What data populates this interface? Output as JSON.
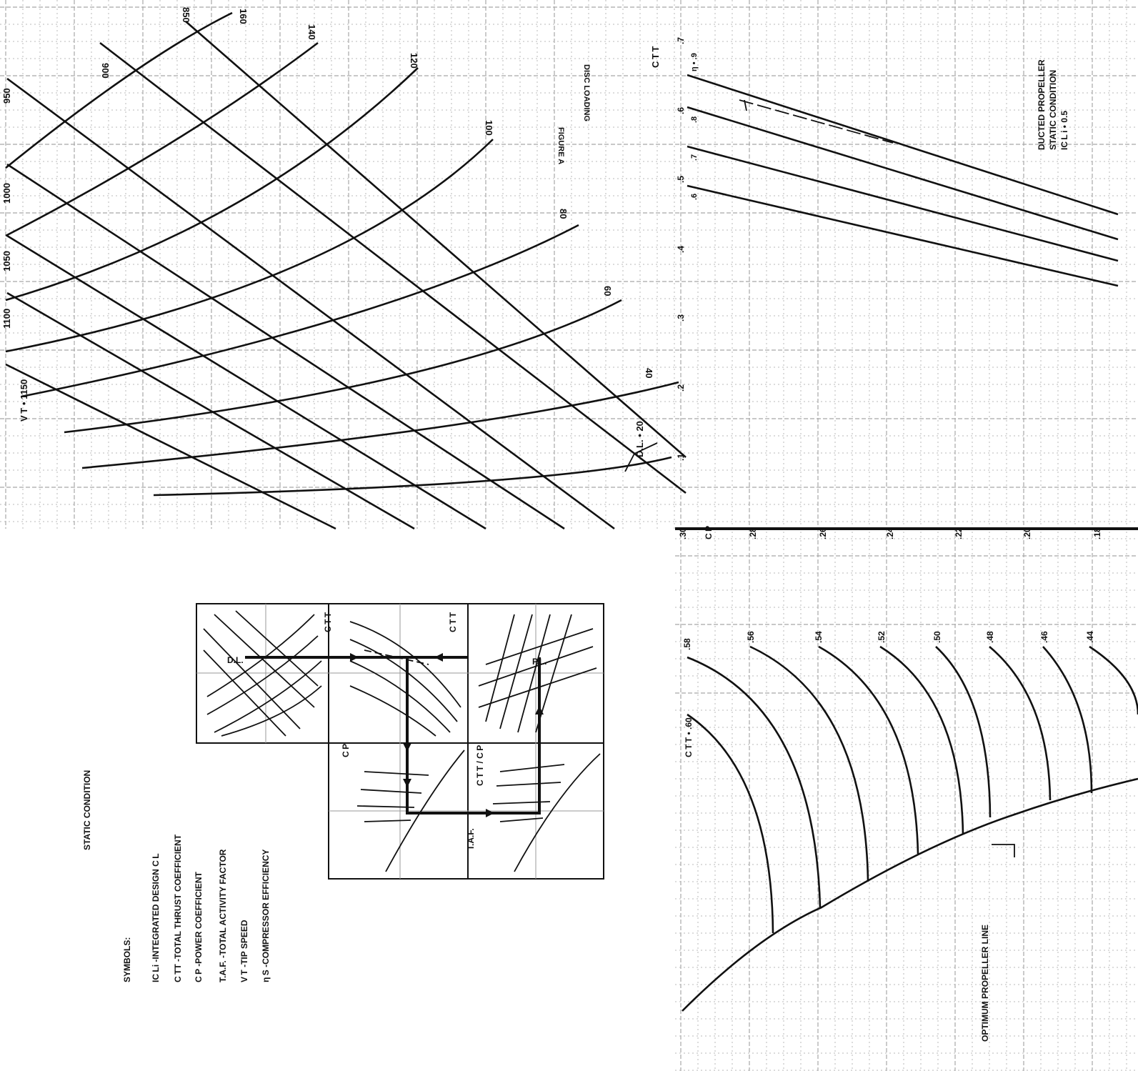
{
  "figure_a": {
    "title": "FIGURE A",
    "subtitle": "DISC LOADING",
    "vt_label": "V T • 1150",
    "vt_values": [
      "1100",
      "1050",
      "1000",
      "950",
      "900",
      "850"
    ],
    "dl_values": [
      "160",
      "140",
      "120",
      "100",
      "80",
      "60",
      "40",
      "20"
    ],
    "dl_label": "D.L. • 20"
  },
  "ducted": {
    "title": "DUCTED PROPELLER",
    "subtitle": "STATIC CONDITION",
    "icl": "IC L i • 0.5",
    "ctt_axis": "C T T",
    "ctt_ticks": [
      ".7",
      ".6",
      ".5",
      ".4",
      ".3",
      ".2",
      ".1"
    ],
    "eta_labels": [
      "η • .9",
      ".8",
      ".7",
      ".6"
    ]
  },
  "cp_axis": {
    "label": "C P",
    "ticks": [
      ".30",
      ".28",
      ".26",
      ".24",
      ".22",
      ".20",
      ".18"
    ]
  },
  "ctt_curves": {
    "first": "C T T • .60",
    "values": [
      ".58",
      ".56",
      ".54",
      ".52",
      ".50",
      ".48",
      ".46",
      ".44"
    ]
  },
  "optimum_line": "OPTIMUM  PROPELLER  LINE",
  "static_condition": "STATIC CONDITION",
  "symbols": {
    "heading": "SYMBOLS:",
    "items": [
      "IC Li -INTEGRATED  DESIGN  C L",
      "C TT -TOTAL  THRUST  COEFFICIENT",
      "C P -POWER  COEFFICIENT",
      "T.A.F. -TOTAL  ACTIVITY  FACTOR",
      "V T -TIP  SPEED",
      "η S -COMPRESSOR  EFFICIENCY"
    ]
  },
  "key": {
    "dl": "D.L.",
    "ctt_top": "C T T",
    "ctt_top2": "C T T",
    "pl": "P.L.",
    "cp": "C P",
    "ctt_cp": "C T T / C P",
    "taf": "T.A.F."
  }
}
